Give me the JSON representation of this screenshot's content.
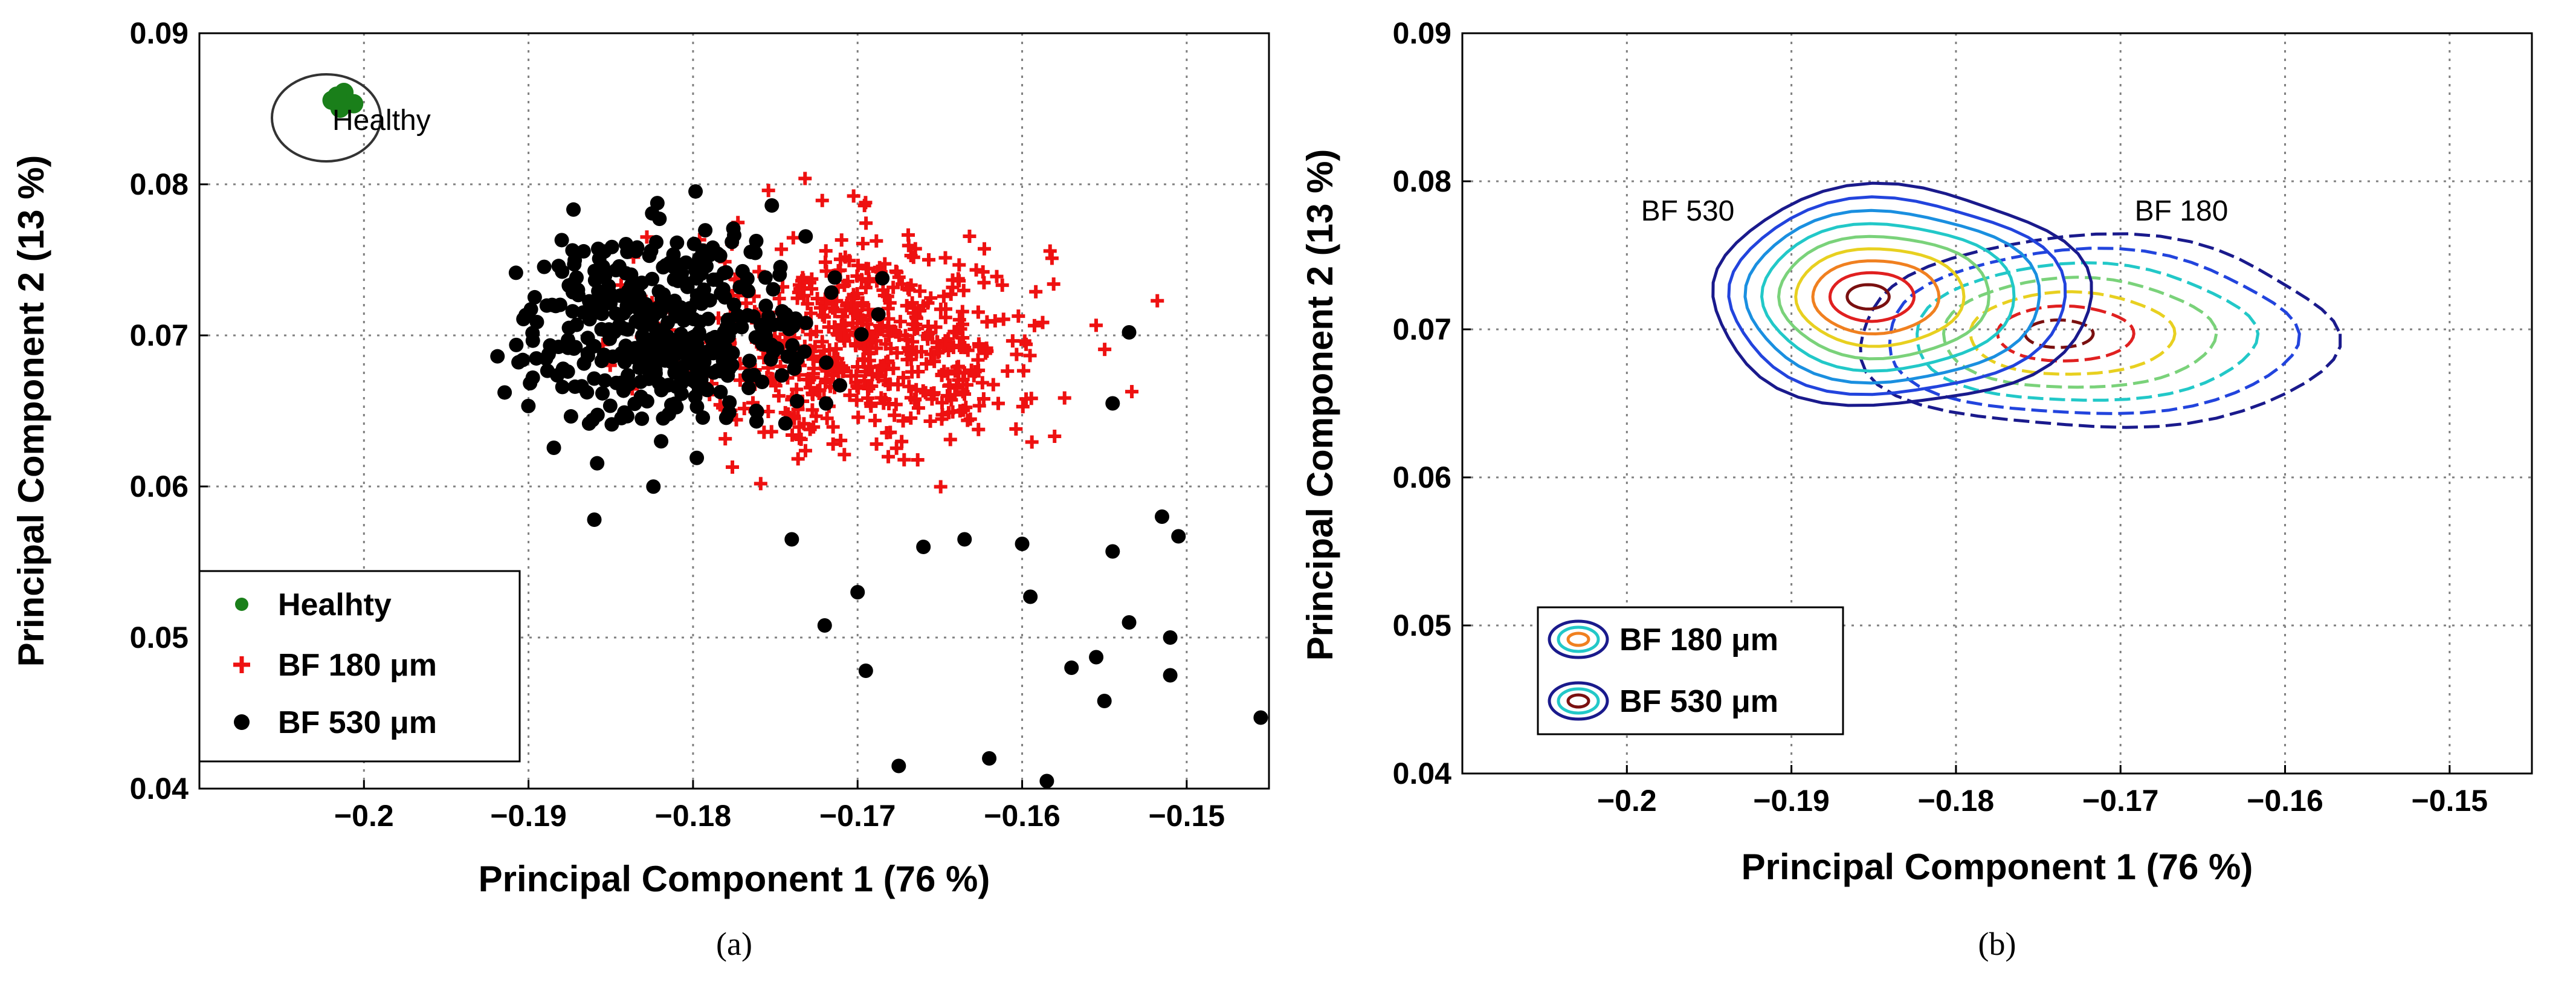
{
  "chart_data": [
    {
      "type": "scatter",
      "panel": "(a)",
      "xlabel": "Principal Component 1 (76 %)",
      "ylabel": "Principal Component 2 (13 %)",
      "xlim": [
        -0.21,
        -0.145
      ],
      "ylim": [
        0.04,
        0.09
      ],
      "xticks": [
        -0.2,
        -0.19,
        -0.18,
        -0.17,
        -0.16,
        -0.15
      ],
      "xtick_labels": [
        "−0.2",
        "−0.19",
        "−0.18",
        "−0.17",
        "−0.16",
        "−0.15"
      ],
      "yticks": [
        0.04,
        0.05,
        0.06,
        0.07,
        0.08,
        0.09
      ],
      "ytick_labels": [
        "0.04",
        "0.05",
        "0.06",
        "0.07",
        "0.08",
        "0.09"
      ],
      "grid": true,
      "legend_position": "bottom-left",
      "annotation": {
        "text": "Healthy",
        "x": -0.2005,
        "y": 0.0855
      },
      "series": [
        {
          "name": "Healhty",
          "color": "#1a7f1a",
          "marker": "circle",
          "center": [
            -0.2015,
            0.0855
          ],
          "spread": [
            0.0003,
            0.00025
          ],
          "count": 6
        },
        {
          "name": "BF 180 μm",
          "color": "#ee1111",
          "marker": "plus",
          "center": [
            -0.1695,
            0.0695
          ],
          "spread": [
            0.0055,
            0.0036
          ],
          "count": 560
        },
        {
          "name": "BF 530 μm",
          "color": "#000000",
          "marker": "circle",
          "center": [
            -0.1815,
            0.0705
          ],
          "spread": [
            0.0045,
            0.0032
          ],
          "count": 420
        }
      ],
      "outliers_bf530": [
        [
          -0.1675,
          0.0415
        ],
        [
          -0.162,
          0.042
        ],
        [
          -0.1585,
          0.0405
        ],
        [
          -0.1455,
          0.0447
        ],
        [
          -0.157,
          0.048
        ],
        [
          -0.1555,
          0.0487
        ],
        [
          -0.155,
          0.0458
        ],
        [
          -0.151,
          0.0475
        ],
        [
          -0.151,
          0.05
        ],
        [
          -0.1535,
          0.051
        ],
        [
          -0.1505,
          0.0567
        ],
        [
          -0.1515,
          0.058
        ],
        [
          -0.16,
          0.0562
        ],
        [
          -0.1545,
          0.0557
        ],
        [
          -0.1695,
          0.0478
        ],
        [
          -0.172,
          0.0508
        ],
        [
          -0.17,
          0.053
        ],
        [
          -0.1635,
          0.0565
        ],
        [
          -0.166,
          0.056
        ],
        [
          -0.1545,
          0.0655
        ],
        [
          -0.1535,
          0.0702
        ],
        [
          -0.186,
          0.0578
        ],
        [
          -0.1595,
          0.0527
        ],
        [
          -0.174,
          0.0565
        ]
      ]
    },
    {
      "type": "contour",
      "panel": "(b)",
      "xlabel": "Principal Component 1 (76 %)",
      "ylabel": "Principal Component 2 (13 %)",
      "xlim": [
        -0.21,
        -0.145
      ],
      "ylim": [
        0.04,
        0.09
      ],
      "xticks": [
        -0.2,
        -0.19,
        -0.18,
        -0.17,
        -0.16,
        -0.15
      ],
      "xtick_labels": [
        "−0.2",
        "−0.19",
        "−0.18",
        "−0.17",
        "−0.16",
        "−0.15"
      ],
      "yticks": [
        0.04,
        0.05,
        0.06,
        0.07,
        0.08,
        0.09
      ],
      "ytick_labels": [
        "0.04",
        "0.05",
        "0.06",
        "0.07",
        "0.08",
        "0.09"
      ],
      "grid": true,
      "legend_position": "bottom-left",
      "annotations": [
        {
          "text": "BF 530",
          "x": -0.1915,
          "y": 0.0759
        },
        {
          "text": "BF 180",
          "x": -0.1615,
          "y": 0.0759
        }
      ],
      "level_colors": [
        "#1a1a8c",
        "#2244dd",
        "#1a8fe0",
        "#22c8c8",
        "#7ad27a",
        "#e8d020",
        "#f08020",
        "#e02020",
        "#7a1010"
      ],
      "series": [
        {
          "name": "BF 180 μm",
          "dashed": true,
          "center": [
            -0.1715,
            0.0697
          ],
          "radii": [
            0.0145,
            0.0065
          ],
          "levels": 7
        },
        {
          "name": "BF 530 μm",
          "dashed": false,
          "center": [
            -0.1835,
            0.0722
          ],
          "radii": [
            0.0115,
            0.0074
          ],
          "levels": 9
        }
      ]
    }
  ],
  "captions": [
    "(a)",
    "(b)"
  ]
}
